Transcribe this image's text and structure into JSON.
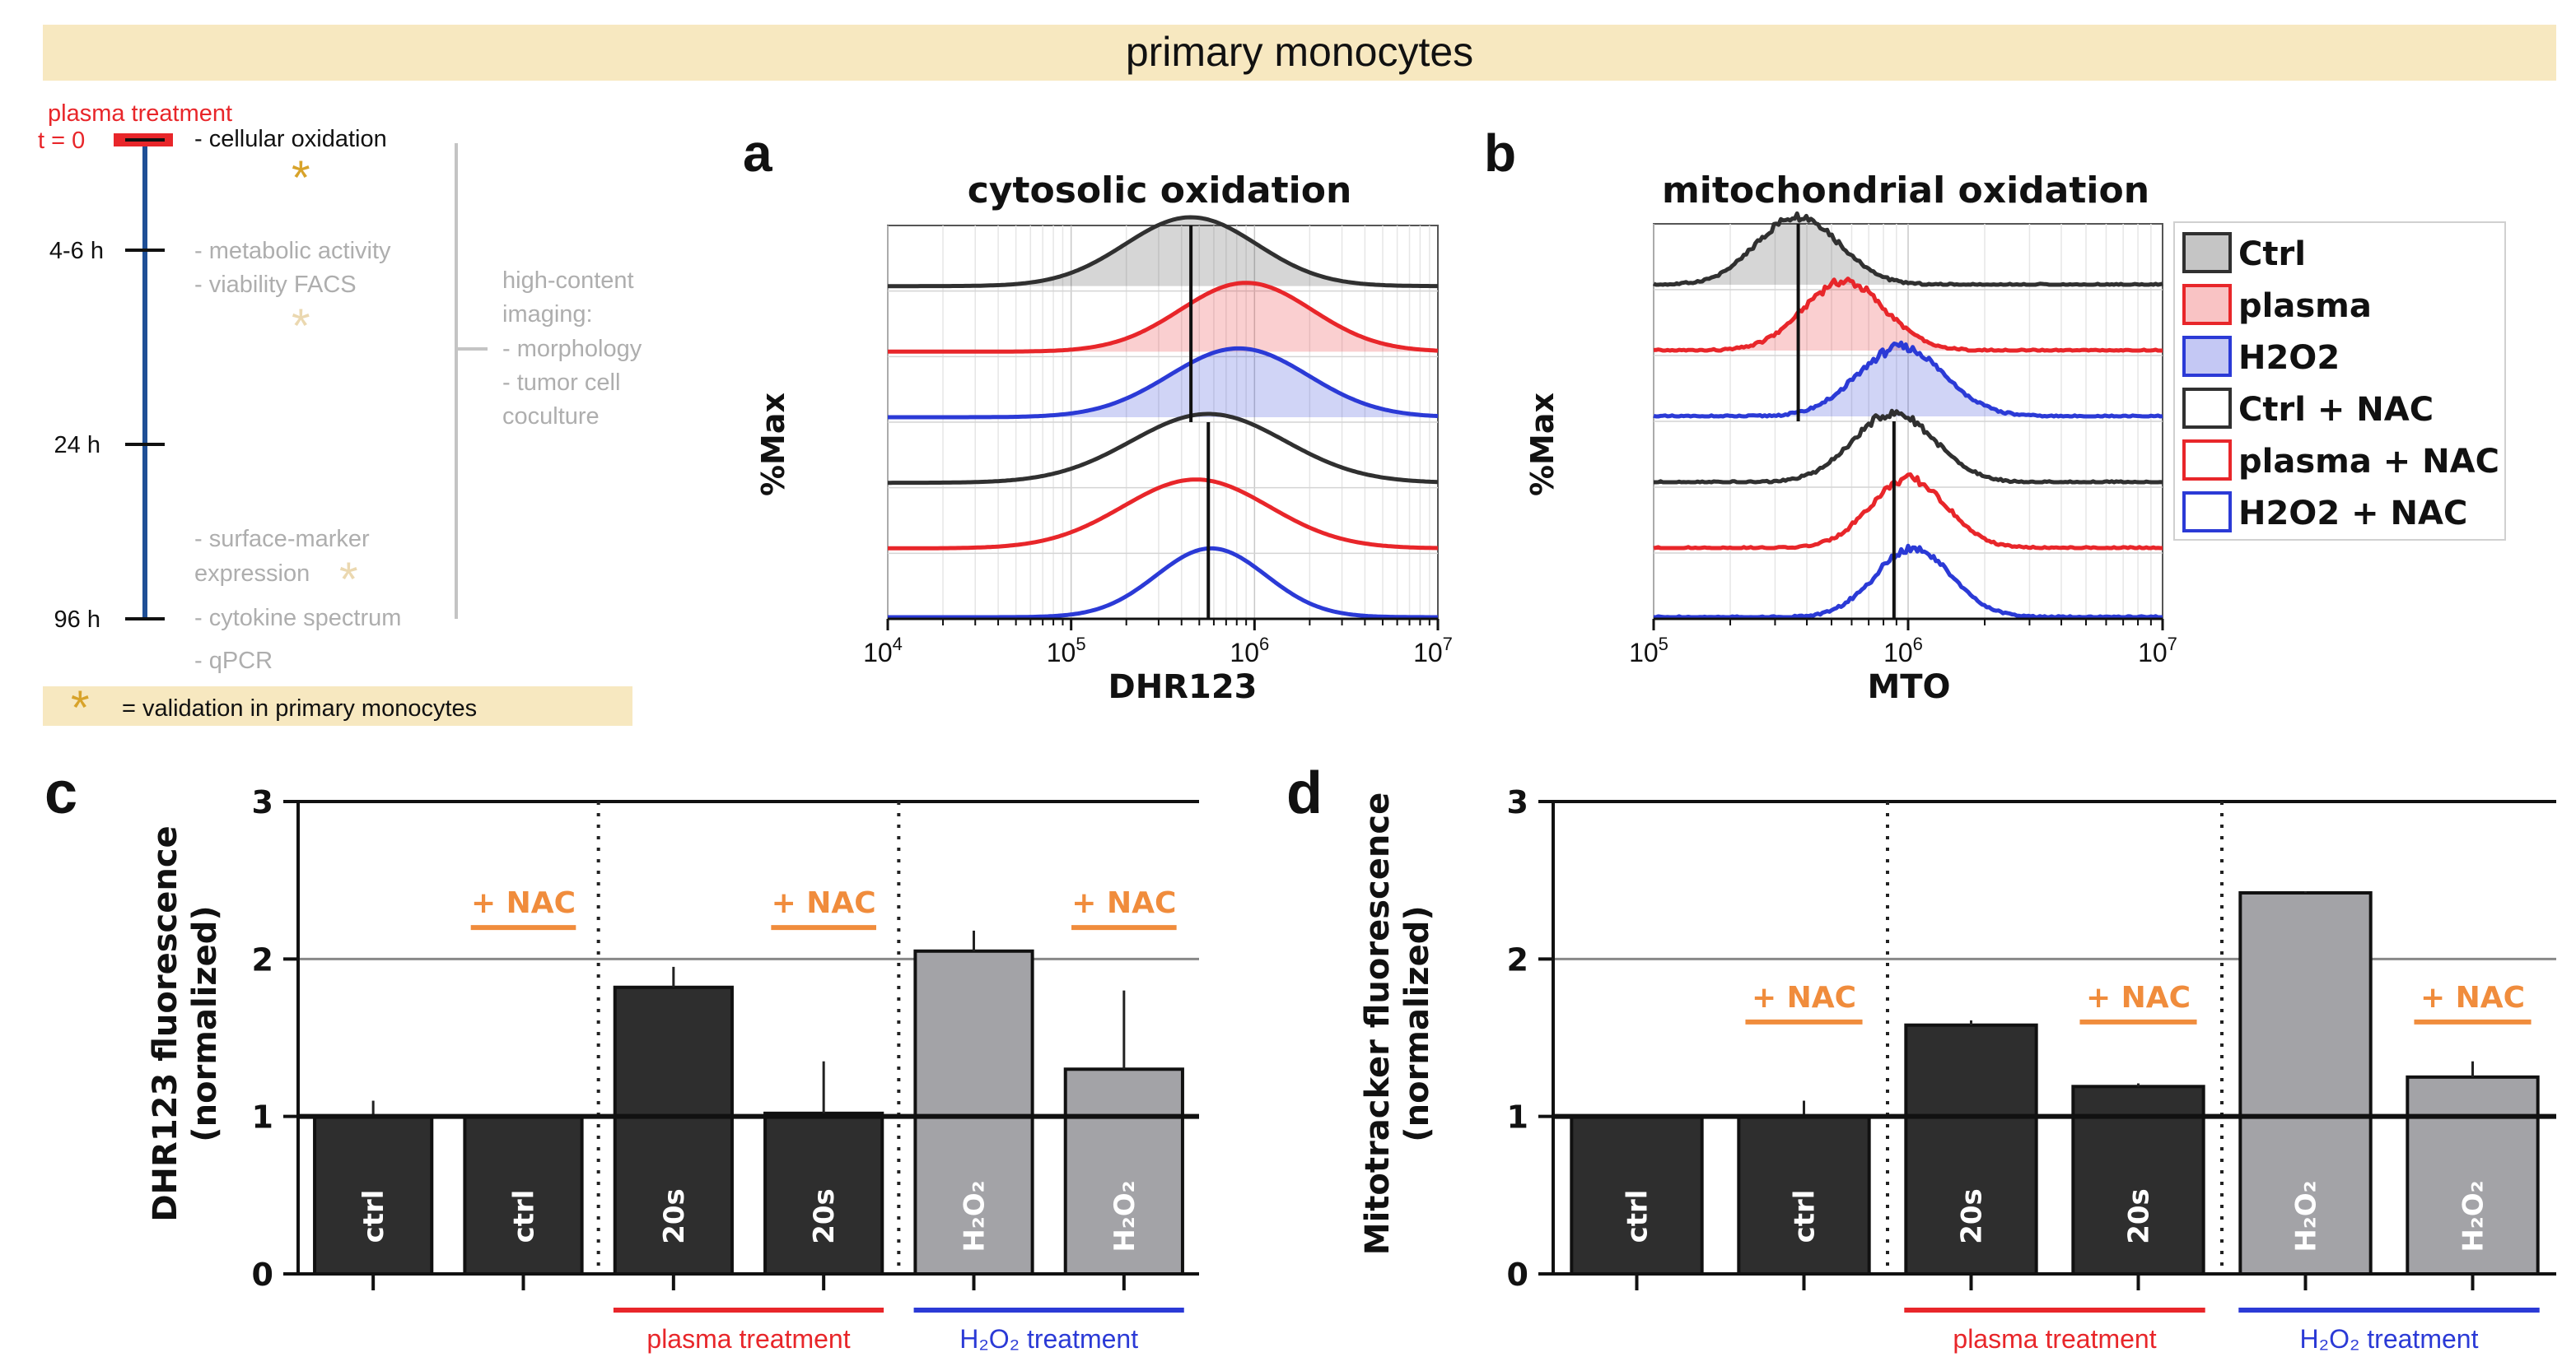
{
  "banner": "primary monocytes",
  "colors": {
    "banner_bg": "#F7E8C0",
    "red": "#E8262A",
    "blue": "#2B3AD6",
    "navy": "#1F4F96",
    "orange": "#F08C3C",
    "gold": "#D8A32A",
    "pale_gold": "#EBD8B0",
    "gray_text": "#AEAEAE",
    "dark_bar": "#2E2E2E",
    "light_bar": "#A3A3A7"
  },
  "timeline": {
    "treatment_label": "plasma treatment",
    "times": [
      "t = 0",
      "4-6 h",
      "24 h",
      "96 h"
    ],
    "assay_t0": "- cellular oxidation",
    "assays_4_6h": [
      "- metabolic activity",
      "- viability FACS"
    ],
    "imaging": [
      "high-content",
      "imaging:",
      "- morphology",
      "- tumor cell",
      "coculture"
    ],
    "assays_late": [
      "- surface-marker",
      "expression"
    ],
    "assays_96h": [
      "- cytokine spectrum",
      "- qPCR"
    ],
    "star": "*",
    "legend": "= validation in primary monocytes"
  },
  "chart_data": [
    {
      "panel": "a",
      "type": "histogram",
      "title": "cytosolic oxidation",
      "xlabel": "DHR123",
      "ylabel": "%Max",
      "x_scale": "log10",
      "xlim": [
        10000,
        10000000
      ],
      "x_ticks": [
        {
          "base": "10",
          "exp": "4"
        },
        {
          "base": "10",
          "exp": "5"
        },
        {
          "base": "10",
          "exp": "6"
        },
        {
          "base": "10",
          "exp": "7"
        }
      ],
      "series": [
        {
          "name": "Ctrl",
          "color": "#303030",
          "filled": true,
          "peak": 450000,
          "width_log": 0.36
        },
        {
          "name": "plasma",
          "color": "#E8262A",
          "filled": true,
          "peak": 900000,
          "width_log": 0.36
        },
        {
          "name": "H2O2",
          "color": "#2B3AD6",
          "filled": true,
          "peak": 820000,
          "width_log": 0.38
        },
        {
          "name": "Ctrl + NAC",
          "color": "#303030",
          "filled": false,
          "peak": 560000,
          "width_log": 0.42
        },
        {
          "name": "plasma + NAC",
          "color": "#E8262A",
          "filled": false,
          "peak": 480000,
          "width_log": 0.4
        },
        {
          "name": "H2O2 + NAC",
          "color": "#2B3AD6",
          "filled": false,
          "peak": 580000,
          "width_log": 0.3
        }
      ],
      "ref_lines": [
        450000,
        560000
      ]
    },
    {
      "panel": "b",
      "type": "histogram",
      "title": "mitochondrial oxidation",
      "xlabel": "MTO",
      "ylabel": "%Max",
      "x_scale": "log10",
      "xlim": [
        100000,
        10000000
      ],
      "x_ticks": [
        {
          "base": "10",
          "exp": "5"
        },
        {
          "base": "10",
          "exp": "6"
        },
        {
          "base": "10",
          "exp": "7"
        }
      ],
      "series": [
        {
          "name": "Ctrl",
          "color": "#303030",
          "filled": true,
          "peak": 370000,
          "width_log": 0.16
        },
        {
          "name": "plasma",
          "color": "#E8262A",
          "filled": true,
          "peak": 560000,
          "width_log": 0.16
        },
        {
          "name": "H2O2",
          "color": "#2B3AD6",
          "filled": true,
          "peak": 940000,
          "width_log": 0.17
        },
        {
          "name": "Ctrl + NAC",
          "color": "#303030",
          "filled": false,
          "peak": 880000,
          "width_log": 0.16
        },
        {
          "name": "plasma + NAC",
          "color": "#E8262A",
          "filled": false,
          "peak": 1000000,
          "width_log": 0.15
        },
        {
          "name": "H2O2 + NAC",
          "color": "#2B3AD6",
          "filled": false,
          "peak": 1050000,
          "width_log": 0.15
        }
      ],
      "ref_lines": [
        370000,
        880000
      ],
      "legend": [
        "Ctrl",
        "plasma",
        "H2O2",
        "Ctrl + NAC",
        "plasma + NAC",
        "H2O2 + NAC"
      ]
    },
    {
      "panel": "c",
      "type": "bar",
      "ylabel": [
        "DHR123 fluorescence",
        "(normalized)"
      ],
      "ylim": [
        0,
        3
      ],
      "y_ticks": [
        "0",
        "1",
        "2",
        "3"
      ],
      "bars": [
        {
          "label": "ctrl",
          "value": 1.0,
          "error": 0.1,
          "shade": "dark"
        },
        {
          "label": "ctrl",
          "value": 1.0,
          "error": 0.0,
          "shade": "dark"
        },
        {
          "label": "20s",
          "value": 1.82,
          "error": 0.13,
          "shade": "dark"
        },
        {
          "label": "20s",
          "value": 1.02,
          "error": 0.33,
          "shade": "dark"
        },
        {
          "label": "H₂O₂",
          "value": 2.05,
          "error": 0.13,
          "shade": "light"
        },
        {
          "label": "H₂O₂",
          "value": 1.3,
          "error": 0.5,
          "shade": "light"
        }
      ],
      "nac_label": "+ NAC",
      "nac_y": 2.2,
      "group_labels": [
        "plasma treatment",
        "H₂O₂ treatment"
      ]
    },
    {
      "panel": "d",
      "type": "bar",
      "ylabel": [
        "Mitotracker fluorescence",
        "(normalized)"
      ],
      "ylim": [
        0,
        3
      ],
      "y_ticks": [
        "0",
        "1",
        "2",
        "3"
      ],
      "bars": [
        {
          "label": "ctrl",
          "value": 1.0,
          "error": 0.0,
          "shade": "dark"
        },
        {
          "label": "ctrl",
          "value": 1.0,
          "error": 0.1,
          "shade": "dark"
        },
        {
          "label": "20s",
          "value": 1.58,
          "error": 0.03,
          "shade": "dark"
        },
        {
          "label": "20s",
          "value": 1.19,
          "error": 0.02,
          "shade": "dark"
        },
        {
          "label": "H₂O₂",
          "value": 2.42,
          "error": 0.01,
          "shade": "light"
        },
        {
          "label": "H₂O₂",
          "value": 1.25,
          "error": 0.1,
          "shade": "light"
        }
      ],
      "nac_label": "+ NAC",
      "nac_y": 1.6,
      "group_labels": [
        "plasma treatment",
        "H₂O₂ treatment"
      ]
    }
  ]
}
